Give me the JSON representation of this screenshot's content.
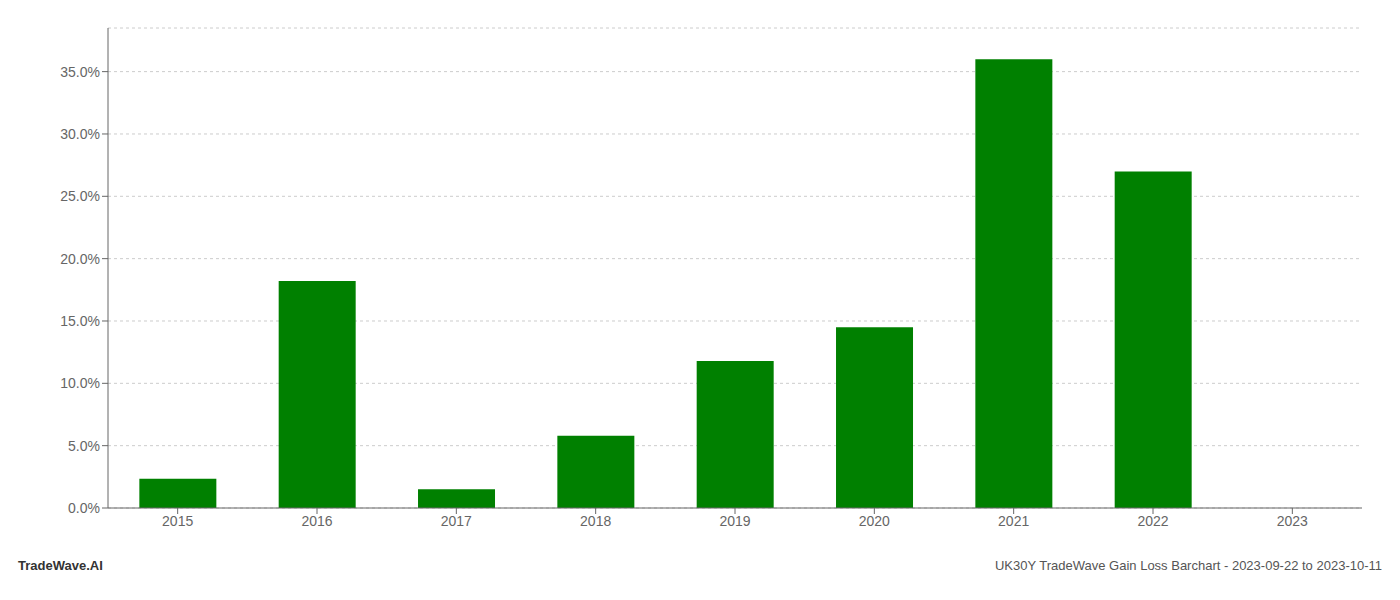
{
  "chart_data": {
    "type": "bar",
    "categories": [
      "2015",
      "2016",
      "2017",
      "2018",
      "2019",
      "2020",
      "2021",
      "2022",
      "2023"
    ],
    "values": [
      0.0235,
      0.182,
      0.015,
      0.058,
      0.118,
      0.145,
      0.36,
      0.27,
      0.0
    ],
    "color": "#008000",
    "ylim": [
      0,
      0.385
    ],
    "yticks": [
      {
        "value": 0.0,
        "label": "0.0%"
      },
      {
        "value": 0.05,
        "label": "5.0%"
      },
      {
        "value": 0.1,
        "label": "10.0%"
      },
      {
        "value": 0.15,
        "label": "15.0%"
      },
      {
        "value": 0.2,
        "label": "20.0%"
      },
      {
        "value": 0.25,
        "label": "25.0%"
      },
      {
        "value": 0.3,
        "label": "30.0%"
      },
      {
        "value": 0.35,
        "label": "35.0%"
      }
    ],
    "grid": "y",
    "annotations": [
      "TradeWave.AI",
      "UK30Y TradeWave Gain Loss Barchart - 2023-09-22 to 2023-10-11"
    ]
  }
}
